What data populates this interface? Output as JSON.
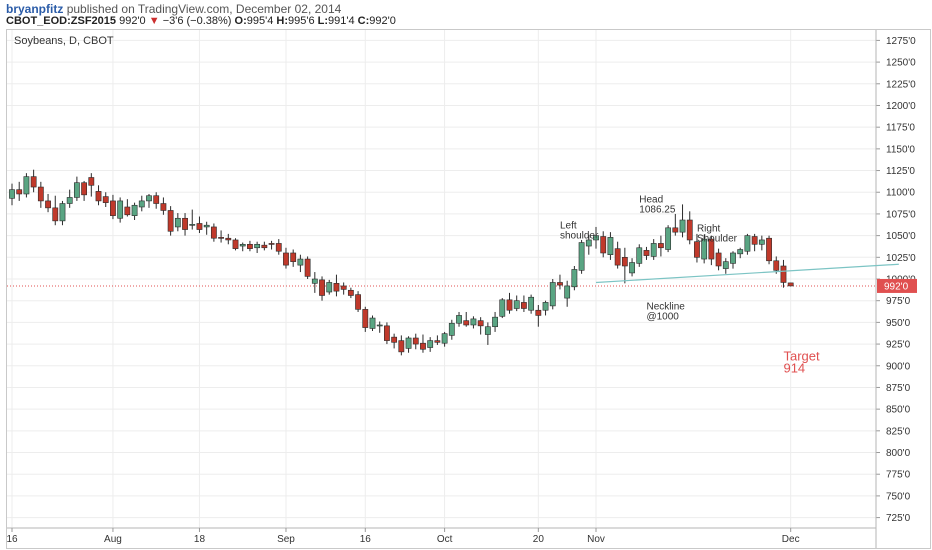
{
  "header": {
    "author": "bryanpfitz",
    "published_text": "published on TradingView.com, December 02, 2014",
    "symbol": "CBOT_EOD:ZSF2015",
    "last": "992'0",
    "change_arrow": "▼",
    "change": "−3'6 (−0.38%)",
    "open_label": "O:",
    "open": "995'4",
    "high_label": "H:",
    "high": "995'6",
    "low_label": "L:",
    "low": "991'4",
    "close_label": "C:",
    "close": "992'0"
  },
  "colors": {
    "up": "#5aa583",
    "down": "#c0392b",
    "grid": "#ededed",
    "neckline": "#7cc4c4",
    "price_line": "#e05050"
  },
  "chart_data": {
    "type": "candlestick",
    "title": "Soybeans, D, CBOT",
    "y_axis": {
      "ylim": [
        713,
        1287
      ],
      "ticks": [
        725,
        750,
        775,
        800,
        825,
        850,
        875,
        900,
        925,
        950,
        975,
        1000,
        1025,
        1050,
        1075,
        1100,
        1125,
        1150,
        1175,
        1200,
        1225,
        1250,
        1275
      ],
      "tick_labels": [
        "725'0",
        "750'0",
        "775'0",
        "800'0",
        "825'0",
        "850'0",
        "875'0",
        "900'0",
        "925'0",
        "950'0",
        "975'0",
        "1000'0",
        "1025'0",
        "1050'0",
        "1075'0",
        "1100'0",
        "1125'0",
        "1150'0",
        "1175'0",
        "1200'0",
        "1225'0",
        "1250'0",
        "1275'0"
      ],
      "position": "right"
    },
    "x_axis": {
      "tick_labels": [
        "16",
        "Aug",
        "18",
        "Sep",
        "16",
        "Oct",
        "20",
        "Nov",
        "Dec"
      ],
      "tick_index": [
        0,
        14,
        26,
        38,
        49,
        60,
        73,
        81,
        108
      ]
    },
    "current_price": 992,
    "current_price_label": "992'0",
    "candles": [
      {
        "o": 1093,
        "h": 1110,
        "l": 1085,
        "c": 1103
      },
      {
        "o": 1103,
        "h": 1112,
        "l": 1090,
        "c": 1098
      },
      {
        "o": 1098,
        "h": 1122,
        "l": 1094,
        "c": 1118
      },
      {
        "o": 1118,
        "h": 1126,
        "l": 1100,
        "c": 1106
      },
      {
        "o": 1106,
        "h": 1112,
        "l": 1082,
        "c": 1090
      },
      {
        "o": 1090,
        "h": 1098,
        "l": 1077,
        "c": 1082
      },
      {
        "o": 1082,
        "h": 1096,
        "l": 1062,
        "c": 1067
      },
      {
        "o": 1067,
        "h": 1090,
        "l": 1062,
        "c": 1087
      },
      {
        "o": 1087,
        "h": 1103,
        "l": 1082,
        "c": 1094
      },
      {
        "o": 1094,
        "h": 1118,
        "l": 1090,
        "c": 1111
      },
      {
        "o": 1111,
        "h": 1113,
        "l": 1090,
        "c": 1097
      },
      {
        "o": 1117,
        "h": 1122,
        "l": 1095,
        "c": 1108
      },
      {
        "o": 1101,
        "h": 1108,
        "l": 1085,
        "c": 1090
      },
      {
        "o": 1095,
        "h": 1100,
        "l": 1083,
        "c": 1088
      },
      {
        "o": 1090,
        "h": 1097,
        "l": 1069,
        "c": 1073
      },
      {
        "o": 1070,
        "h": 1094,
        "l": 1065,
        "c": 1090
      },
      {
        "o": 1083,
        "h": 1092,
        "l": 1072,
        "c": 1074
      },
      {
        "o": 1073,
        "h": 1088,
        "l": 1068,
        "c": 1085
      },
      {
        "o": 1083,
        "h": 1096,
        "l": 1078,
        "c": 1090
      },
      {
        "o": 1090,
        "h": 1098,
        "l": 1082,
        "c": 1096
      },
      {
        "o": 1096,
        "h": 1100,
        "l": 1081,
        "c": 1087
      },
      {
        "o": 1087,
        "h": 1094,
        "l": 1074,
        "c": 1079
      },
      {
        "o": 1079,
        "h": 1084,
        "l": 1050,
        "c": 1055
      },
      {
        "o": 1060,
        "h": 1076,
        "l": 1055,
        "c": 1070
      },
      {
        "o": 1070,
        "h": 1076,
        "l": 1050,
        "c": 1057
      },
      {
        "o": 1062,
        "h": 1080,
        "l": 1057,
        "c": 1063
      },
      {
        "o": 1064,
        "h": 1072,
        "l": 1053,
        "c": 1057
      },
      {
        "o": 1060,
        "h": 1066,
        "l": 1051,
        "c": 1062
      },
      {
        "o": 1060,
        "h": 1064,
        "l": 1043,
        "c": 1047
      },
      {
        "o": 1048,
        "h": 1056,
        "l": 1042,
        "c": 1047
      },
      {
        "o": 1047,
        "h": 1052,
        "l": 1040,
        "c": 1045
      },
      {
        "o": 1045,
        "h": 1047,
        "l": 1033,
        "c": 1035
      },
      {
        "o": 1038,
        "h": 1042,
        "l": 1032,
        "c": 1040
      },
      {
        "o": 1040,
        "h": 1044,
        "l": 1032,
        "c": 1035
      },
      {
        "o": 1036,
        "h": 1043,
        "l": 1030,
        "c": 1040
      },
      {
        "o": 1039,
        "h": 1043,
        "l": 1033,
        "c": 1036
      },
      {
        "o": 1041,
        "h": 1044,
        "l": 1034,
        "c": 1040
      },
      {
        "o": 1041,
        "h": 1046,
        "l": 1028,
        "c": 1032
      },
      {
        "o": 1030,
        "h": 1036,
        "l": 1012,
        "c": 1016
      },
      {
        "o": 1030,
        "h": 1034,
        "l": 1014,
        "c": 1020
      },
      {
        "o": 1016,
        "h": 1028,
        "l": 1008,
        "c": 1023
      },
      {
        "o": 1023,
        "h": 1026,
        "l": 1000,
        "c": 1003
      },
      {
        "o": 995,
        "h": 1008,
        "l": 984,
        "c": 1000
      },
      {
        "o": 999,
        "h": 1003,
        "l": 975,
        "c": 981
      },
      {
        "o": 985,
        "h": 999,
        "l": 982,
        "c": 996
      },
      {
        "o": 995,
        "h": 1005,
        "l": 980,
        "c": 986
      },
      {
        "o": 992,
        "h": 996,
        "l": 982,
        "c": 988
      },
      {
        "o": 987,
        "h": 990,
        "l": 978,
        "c": 981
      },
      {
        "o": 982,
        "h": 986,
        "l": 962,
        "c": 965
      },
      {
        "o": 965,
        "h": 968,
        "l": 939,
        "c": 944
      },
      {
        "o": 943,
        "h": 958,
        "l": 940,
        "c": 955
      },
      {
        "o": 946,
        "h": 951,
        "l": 938,
        "c": 947
      },
      {
        "o": 946,
        "h": 950,
        "l": 925,
        "c": 929
      },
      {
        "o": 933,
        "h": 937,
        "l": 920,
        "c": 927
      },
      {
        "o": 929,
        "h": 935,
        "l": 912,
        "c": 916
      },
      {
        "o": 920,
        "h": 934,
        "l": 915,
        "c": 932
      },
      {
        "o": 932,
        "h": 937,
        "l": 919,
        "c": 925
      },
      {
        "o": 926,
        "h": 936,
        "l": 915,
        "c": 919
      },
      {
        "o": 921,
        "h": 933,
        "l": 916,
        "c": 929
      },
      {
        "o": 929,
        "h": 935,
        "l": 924,
        "c": 927
      },
      {
        "o": 926,
        "h": 939,
        "l": 922,
        "c": 937
      },
      {
        "o": 935,
        "h": 953,
        "l": 930,
        "c": 949
      },
      {
        "o": 949,
        "h": 962,
        "l": 945,
        "c": 958
      },
      {
        "o": 952,
        "h": 962,
        "l": 945,
        "c": 947
      },
      {
        "o": 947,
        "h": 957,
        "l": 943,
        "c": 954
      },
      {
        "o": 952,
        "h": 956,
        "l": 936,
        "c": 946
      },
      {
        "o": 936,
        "h": 950,
        "l": 924,
        "c": 945
      },
      {
        "o": 945,
        "h": 962,
        "l": 939,
        "c": 956
      },
      {
        "o": 957,
        "h": 978,
        "l": 955,
        "c": 976
      },
      {
        "o": 976,
        "h": 984,
        "l": 960,
        "c": 964
      },
      {
        "o": 966,
        "h": 981,
        "l": 963,
        "c": 975
      },
      {
        "o": 973,
        "h": 981,
        "l": 962,
        "c": 966
      },
      {
        "o": 964,
        "h": 982,
        "l": 960,
        "c": 979
      },
      {
        "o": 964,
        "h": 970,
        "l": 945,
        "c": 958
      },
      {
        "o": 964,
        "h": 975,
        "l": 958,
        "c": 973
      },
      {
        "o": 969,
        "h": 1000,
        "l": 965,
        "c": 996
      },
      {
        "o": 996,
        "h": 1005,
        "l": 988,
        "c": 993
      },
      {
        "o": 978,
        "h": 998,
        "l": 968,
        "c": 992
      },
      {
        "o": 991,
        "h": 1015,
        "l": 987,
        "c": 1011
      },
      {
        "o": 1010,
        "h": 1045,
        "l": 1006,
        "c": 1042
      },
      {
        "o": 1038,
        "h": 1051,
        "l": 1028,
        "c": 1045
      },
      {
        "o": 1045,
        "h": 1060,
        "l": 1035,
        "c": 1050
      },
      {
        "o": 1049,
        "h": 1055,
        "l": 1025,
        "c": 1030
      },
      {
        "o": 1028,
        "h": 1054,
        "l": 1022,
        "c": 1048
      },
      {
        "o": 1035,
        "h": 1043,
        "l": 1012,
        "c": 1016
      },
      {
        "o": 1025,
        "h": 1036,
        "l": 995,
        "c": 1015
      },
      {
        "o": 1007,
        "h": 1024,
        "l": 1003,
        "c": 1019
      },
      {
        "o": 1018,
        "h": 1040,
        "l": 1014,
        "c": 1036
      },
      {
        "o": 1033,
        "h": 1037,
        "l": 1022,
        "c": 1027
      },
      {
        "o": 1026,
        "h": 1046,
        "l": 1022,
        "c": 1041
      },
      {
        "o": 1041,
        "h": 1050,
        "l": 1026,
        "c": 1036
      },
      {
        "o": 1034,
        "h": 1062,
        "l": 1031,
        "c": 1059
      },
      {
        "o": 1059,
        "h": 1075,
        "l": 1050,
        "c": 1054
      },
      {
        "o": 1054,
        "h": 1086,
        "l": 1048,
        "c": 1068
      },
      {
        "o": 1068,
        "h": 1078,
        "l": 1040,
        "c": 1045
      },
      {
        "o": 1043,
        "h": 1052,
        "l": 1019,
        "c": 1025
      },
      {
        "o": 1023,
        "h": 1051,
        "l": 1018,
        "c": 1046
      },
      {
        "o": 1046,
        "h": 1050,
        "l": 1016,
        "c": 1023
      },
      {
        "o": 1030,
        "h": 1035,
        "l": 1010,
        "c": 1015
      },
      {
        "o": 1012,
        "h": 1024,
        "l": 1006,
        "c": 1020
      },
      {
        "o": 1018,
        "h": 1032,
        "l": 1012,
        "c": 1030
      },
      {
        "o": 1029,
        "h": 1036,
        "l": 1024,
        "c": 1034
      },
      {
        "o": 1032,
        "h": 1052,
        "l": 1028,
        "c": 1050
      },
      {
        "o": 1049,
        "h": 1052,
        "l": 1032,
        "c": 1040
      },
      {
        "o": 1040,
        "h": 1050,
        "l": 1033,
        "c": 1045
      },
      {
        "o": 1047,
        "h": 1050,
        "l": 1017,
        "c": 1021
      },
      {
        "o": 1021,
        "h": 1026,
        "l": 1006,
        "c": 1010
      },
      {
        "o": 1015,
        "h": 1022,
        "l": 990,
        "c": 996
      },
      {
        "o": 995.5,
        "h": 995.75,
        "l": 991.5,
        "c": 992
      }
    ],
    "neckline": {
      "from": {
        "index": 81,
        "price": 996
      },
      "to": {
        "index": 123,
        "price": 1017
      }
    },
    "annotations": [
      {
        "text": "Left\nshoulder",
        "index": 76,
        "price": 1058
      },
      {
        "text": "Head\n1086.25",
        "index": 87,
        "price": 1088
      },
      {
        "text": "Right\nShoulder",
        "index": 95,
        "price": 1055
      },
      {
        "text": "Neckline\n@1000",
        "index": 88,
        "price": 965
      },
      {
        "text": "Target\n914",
        "index": 107,
        "price": 906,
        "color": "#e05050"
      }
    ]
  }
}
